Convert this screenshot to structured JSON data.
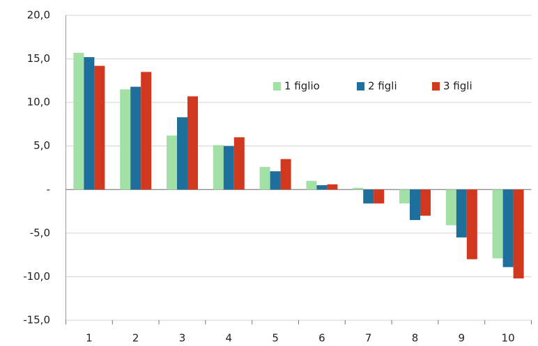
{
  "chart_data": {
    "type": "bar",
    "categories": [
      "1",
      "2",
      "3",
      "4",
      "5",
      "6",
      "7",
      "8",
      "9",
      "10"
    ],
    "series": [
      {
        "name": "1 figlio",
        "color": "#a3e0a6",
        "values": [
          15.7,
          11.5,
          6.2,
          5.1,
          2.6,
          1.0,
          0.2,
          -1.6,
          -4.1,
          -7.9
        ]
      },
      {
        "name": "2 figli",
        "color": "#1f6f9c",
        "values": [
          15.2,
          11.8,
          8.3,
          5.0,
          2.1,
          0.5,
          -1.6,
          -3.5,
          -5.5,
          -8.9
        ]
      },
      {
        "name": "3 figli",
        "color": "#d2381e",
        "values": [
          14.2,
          13.5,
          10.7,
          6.0,
          3.5,
          0.6,
          -1.6,
          -3.0,
          -8.0,
          -10.2
        ]
      }
    ],
    "ylim": [
      -15,
      20
    ],
    "yticks": [
      {
        "value": 20,
        "label": "20,0"
      },
      {
        "value": 15,
        "label": "15,0"
      },
      {
        "value": 10,
        "label": "10,0"
      },
      {
        "value": 5,
        "label": "5,0"
      },
      {
        "value": 0,
        "label": "-"
      },
      {
        "value": -5,
        "label": "-5,0"
      },
      {
        "value": -10,
        "label": "-10,0"
      },
      {
        "value": -15,
        "label": "-15,0"
      }
    ],
    "grid": true,
    "legend": "top-right"
  }
}
